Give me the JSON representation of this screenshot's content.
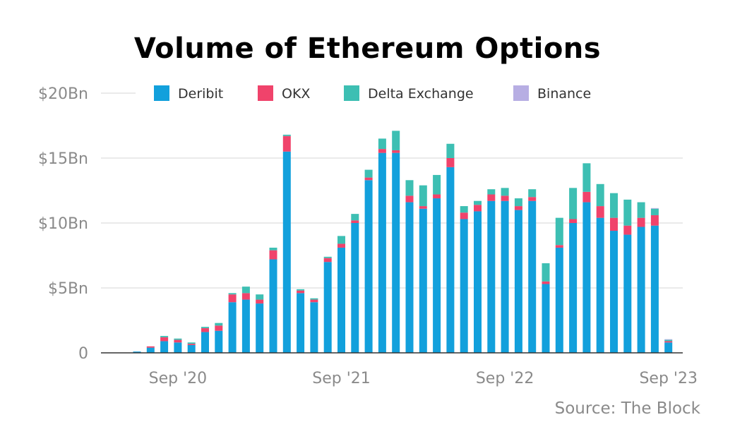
{
  "chart_data": {
    "type": "bar",
    "stacked": true,
    "title": "Volume of Ethereum Options",
    "source": "Source: The Block",
    "ylim": [
      0,
      20
    ],
    "y_ticks": [
      {
        "value": 0,
        "label": "0"
      },
      {
        "value": 5,
        "label": "$5Bn"
      },
      {
        "value": 10,
        "label": "$10Bn"
      },
      {
        "value": 15,
        "label": "$15Bn"
      },
      {
        "value": 20,
        "label": "$20Bn"
      }
    ],
    "x_ticks": [
      {
        "index": 3,
        "label": "Sep '20"
      },
      {
        "index": 15,
        "label": "Sep '21"
      },
      {
        "index": 27,
        "label": "Sep '22"
      },
      {
        "index": 39,
        "label": "Sep '23"
      }
    ],
    "grid": true,
    "legend_position": "top",
    "colors": {
      "Deribit": "#12a0dc",
      "OKX": "#f0436b",
      "Delta Exchange": "#3dbfb3",
      "Binance": "#b7aee3"
    },
    "series": [
      {
        "name": "Deribit",
        "values": [
          0.1,
          0.4,
          0.9,
          0.8,
          0.6,
          1.6,
          1.7,
          3.9,
          4.1,
          3.8,
          7.2,
          15.5,
          4.6,
          3.9,
          7.0,
          8.1,
          10.0,
          13.3,
          15.4,
          15.4,
          11.6,
          11.1,
          11.9,
          14.3,
          10.3,
          10.9,
          11.7,
          11.7,
          11.0,
          11.7,
          5.3,
          8.1,
          10.0,
          11.6,
          10.4,
          9.4,
          9.1,
          9.7,
          9.8,
          0.8
        ]
      },
      {
        "name": "OKX",
        "values": [
          0.0,
          0.1,
          0.3,
          0.2,
          0.1,
          0.3,
          0.4,
          0.6,
          0.5,
          0.3,
          0.7,
          1.2,
          0.2,
          0.2,
          0.3,
          0.3,
          0.2,
          0.2,
          0.3,
          0.2,
          0.5,
          0.2,
          0.3,
          0.7,
          0.5,
          0.5,
          0.5,
          0.4,
          0.3,
          0.3,
          0.2,
          0.2,
          0.3,
          0.8,
          0.9,
          1.0,
          0.7,
          0.7,
          0.8,
          0.1
        ]
      },
      {
        "name": "Delta Exchange",
        "values": [
          0.0,
          0.0,
          0.1,
          0.1,
          0.1,
          0.1,
          0.2,
          0.1,
          0.5,
          0.4,
          0.2,
          0.1,
          0.1,
          0.1,
          0.1,
          0.6,
          0.5,
          0.6,
          0.8,
          1.5,
          1.2,
          1.6,
          1.5,
          1.1,
          0.5,
          0.3,
          0.4,
          0.6,
          0.6,
          0.6,
          1.4,
          2.1,
          2.4,
          2.2,
          1.7,
          1.9,
          2.0,
          1.2,
          0.5,
          0.1
        ]
      },
      {
        "name": "Binance",
        "values": [
          0.0,
          0.0,
          0.0,
          0.0,
          0.0,
          0.0,
          0.0,
          0.0,
          0.0,
          0.0,
          0.0,
          0.0,
          0.0,
          0.0,
          0.0,
          0.0,
          0.0,
          0.0,
          0.0,
          0.0,
          0.0,
          0.0,
          0.0,
          0.0,
          0.0,
          0.0,
          0.0,
          0.0,
          0.0,
          0.0,
          0.0,
          0.0,
          0.0,
          0.0,
          0.0,
          0.0,
          0.0,
          0.0,
          0.05,
          0.05
        ]
      }
    ]
  }
}
